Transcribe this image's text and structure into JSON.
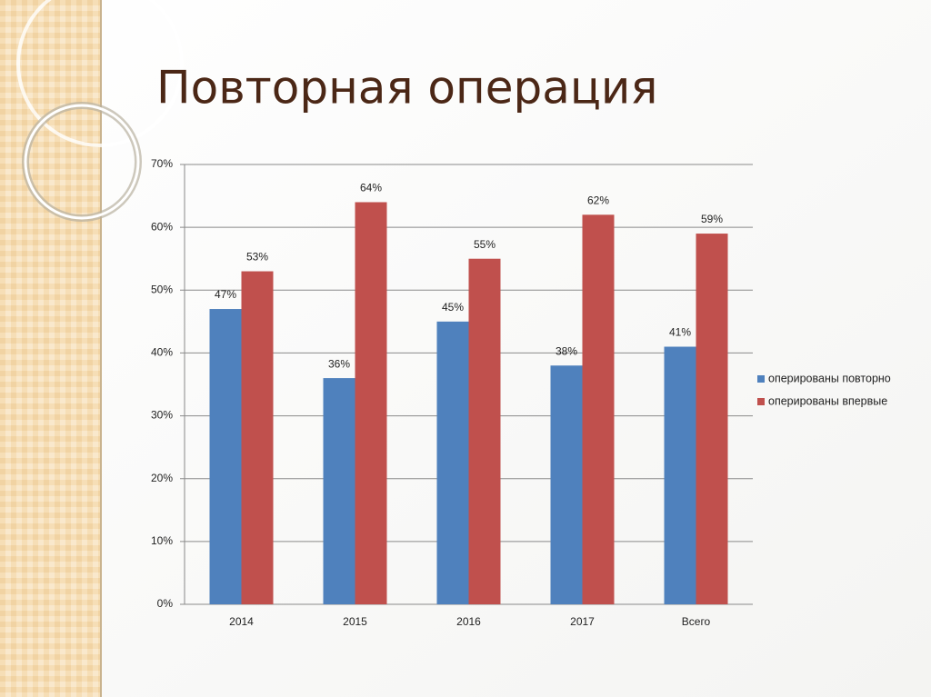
{
  "chart_data": {
    "type": "bar",
    "title": "Повторная операция",
    "categories": [
      "2014",
      "2015",
      "2016",
      "2017",
      "Всего"
    ],
    "series": [
      {
        "name": "оперированы повторно",
        "color": "#4f81bd",
        "values": [
          47,
          36,
          45,
          38,
          41
        ],
        "value_labels": [
          "47%",
          "36%",
          "45%",
          "38%",
          "41%"
        ]
      },
      {
        "name": "оперированы впервые",
        "color": "#c0504d",
        "values": [
          53,
          64,
          55,
          62,
          59
        ],
        "value_labels": [
          "53%",
          "64%",
          "55%",
          "62%",
          "59%"
        ]
      }
    ],
    "ylim": [
      0,
      70
    ],
    "yticks": [
      {
        "value": 0,
        "label": "0%"
      },
      {
        "value": 10,
        "label": "10%"
      },
      {
        "value": 20,
        "label": "20%"
      },
      {
        "value": 30,
        "label": "30%"
      },
      {
        "value": 40,
        "label": "40%"
      },
      {
        "value": 50,
        "label": "50%"
      },
      {
        "value": 60,
        "label": "60%"
      },
      {
        "value": 70,
        "label": "70%"
      }
    ],
    "grid": true,
    "legend": "right"
  }
}
